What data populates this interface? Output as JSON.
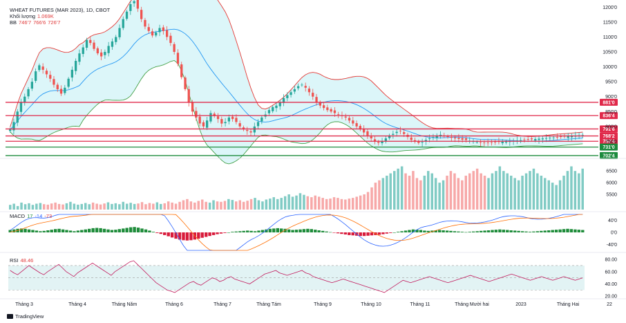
{
  "header": {
    "symbol": "WHEAT FUTURES (MAR 2023), 1D, CBOT",
    "volume_label": "Khối lượng",
    "volume_value": "1.069K",
    "bb_label": "BB",
    "bb_values": [
      "746'7",
      "766'6",
      "726'7"
    ],
    "macd_label": "MACD",
    "macd_values": [
      "17",
      "-14",
      "-73"
    ],
    "rsi_label": "RSI",
    "rsi_value": "48.46"
  },
  "footer": {
    "brand": "TradingView"
  },
  "colors": {
    "up": "#26a69a",
    "down": "#ef5350",
    "bb_upper": "#e53935",
    "bb_lower": "#43a047",
    "bb_basis": "#2196f3",
    "band_fill": "#b2ebf2",
    "level_red": "#e0294a",
    "level_green": "#1b8a3c",
    "macd_line": "#2962ff",
    "signal_line": "#ff6d00",
    "rsi_line": "#c2185b",
    "rsi_band": "#d6eef0"
  },
  "chart_data": [
    {
      "type": "candlestick",
      "title": "WHEAT FUTURES (MAR 2023), 1D, CBOT",
      "x_tick_labels": [
        "Tháng 3",
        "Tháng 4",
        "Tháng Năm",
        "Tháng 6",
        "Tháng 7",
        "Tháng Tám",
        "Tháng 9",
        "Tháng 10",
        "Tháng 11",
        "Tháng Mười hai",
        "2023",
        "Tháng Hai",
        "22"
      ],
      "y_tick_labels": [
        "1200'0",
        "1150'0",
        "1100'0",
        "1050'0",
        "1000'0",
        "950'0",
        "900'0",
        "850'0",
        "800'0",
        "750'0"
      ],
      "ylim": [
        700,
        1210
      ],
      "scale": "linear",
      "overlays": [
        "Bollinger Bands"
      ],
      "horizontal_levels": [
        {
          "label": "881'0",
          "value": 881,
          "color": "red"
        },
        {
          "label": "836'4",
          "value": 836.5,
          "color": "red"
        },
        {
          "label": "791'6",
          "value": 791.75,
          "color": "red"
        },
        {
          "label": "768'2",
          "value": 768.25,
          "color": "red"
        },
        {
          "label": "750'4",
          "value": 750.5,
          "color": "red"
        },
        {
          "label": "731'0",
          "value": 731,
          "color": "green"
        },
        {
          "label": "702'4",
          "value": 702.5,
          "color": "green"
        }
      ],
      "close_series": [
        790,
        815,
        850,
        880,
        900,
        925,
        950,
        985,
        1005,
        990,
        975,
        960,
        940,
        925,
        910,
        930,
        960,
        990,
        1020,
        1045,
        1065,
        1090,
        1080,
        1060,
        1045,
        1035,
        1050,
        1070,
        1085,
        1100,
        1130,
        1160,
        1185,
        1210,
        1220,
        1195,
        1160,
        1135,
        1120,
        1105,
        1115,
        1130,
        1120,
        1100,
        1080,
        1050,
        1010,
        965,
        925,
        880,
        850,
        830,
        810,
        800,
        820,
        845,
        835,
        825,
        810,
        815,
        830,
        825,
        815,
        800,
        790,
        785,
        780,
        800,
        815,
        830,
        840,
        855,
        865,
        870,
        880,
        895,
        905,
        915,
        925,
        935,
        940,
        930,
        915,
        900,
        880,
        870,
        862,
        855,
        850,
        845,
        840,
        835,
        830,
        820,
        810,
        800,
        790,
        780,
        770,
        760,
        750,
        745,
        750,
        760,
        770,
        775,
        782,
        785,
        775,
        765,
        755,
        750,
        745,
        748,
        755,
        760,
        765,
        770,
        772,
        768,
        765,
        762,
        760,
        758,
        756,
        755,
        752,
        750,
        748,
        746,
        745,
        745,
        746,
        747,
        748,
        749,
        750,
        751,
        752,
        753,
        754,
        755,
        756,
        757,
        758,
        759,
        760,
        761,
        762,
        763,
        764,
        765,
        766,
        767,
        768,
        769,
        770,
        771
      ]
    },
    {
      "type": "bar",
      "title": "Khối lượng",
      "y_tick_labels": [
        "6500",
        "6000",
        "5500"
      ],
      "ylim": [
        4850,
        6950
      ],
      "values": [
        5050,
        5100,
        5000,
        5150,
        5080,
        5120,
        5050,
        5100,
        5130,
        5080,
        5060,
        5110,
        5150,
        5090,
        5070,
        5120,
        5180,
        5100,
        5060,
        5090,
        5130,
        5080,
        5150,
        5100,
        5070,
        5110,
        5160,
        5090,
        5120,
        5080,
        5180,
        5100,
        5140,
        5090,
        5110,
        5170,
        5080,
        5130,
        5100,
        5160,
        5090,
        5120,
        5200,
        5150,
        5100,
        5180,
        5250,
        5300,
        5200,
        5150,
        5220,
        5280,
        5180,
        5150,
        5250,
        5200,
        5180,
        5220,
        5300,
        5260,
        5200,
        5250,
        5180,
        5230,
        5300,
        5350,
        5250,
        5200,
        5280,
        5320,
        5380,
        5300,
        5350,
        5420,
        5500,
        5400,
        5450,
        5550,
        5480,
        5420,
        5380,
        5450,
        5400,
        5350,
        5300,
        5320,
        5380,
        5350,
        5300,
        5280,
        5320,
        5350,
        5400,
        5450,
        5500,
        5600,
        5800,
        6000,
        6100,
        6200,
        6300,
        6400,
        6500,
        6600,
        6700,
        6400,
        6300,
        6500,
        6200,
        6100,
        6300,
        6500,
        6400,
        6200,
        6000,
        6100,
        6300,
        6500,
        6400,
        6200,
        6100,
        6300,
        6400,
        6500,
        6600,
        6400,
        6300,
        6200,
        6400,
        6500,
        6700,
        6500,
        6400,
        6300,
        6200,
        6100,
        6300,
        6400,
        6500,
        6600,
        6400,
        6300,
        6200,
        6100,
        6000,
        5900,
        6100,
        6300,
        6500,
        6700,
        6500,
        6400,
        6600
      ]
    },
    {
      "type": "histogram",
      "title": "MACD",
      "y_tick_labels": [
        "40'0",
        "0'0",
        "-40'0"
      ],
      "ylim": [
        -60,
        60
      ],
      "values": [
        8,
        10,
        12,
        13,
        12,
        10,
        8,
        6,
        4,
        5,
        7,
        9,
        11,
        12,
        10,
        8,
        6,
        4,
        6,
        8,
        10,
        12,
        14,
        15,
        14,
        12,
        10,
        8,
        9,
        11,
        13,
        15,
        17,
        18,
        16,
        13,
        10,
        6,
        2,
        -2,
        -5,
        -9,
        -13,
        -17,
        -21,
        -24,
        -26,
        -27,
        -26,
        -24,
        -21,
        -18,
        -15,
        -12,
        -9,
        -6,
        -4,
        -2,
        0,
        2,
        3,
        4,
        5,
        6,
        5,
        4,
        6,
        8,
        10,
        12,
        13,
        14,
        13,
        12,
        10,
        8,
        9,
        10,
        11,
        12,
        11,
        9,
        7,
        5,
        3,
        1,
        -1,
        -3,
        -5,
        -7,
        -9,
        -10,
        -11,
        -12,
        -12,
        -11,
        -10,
        -9,
        -8,
        -6,
        -4,
        -2,
        0,
        2,
        4,
        6,
        8,
        10,
        9,
        8,
        6,
        5,
        6,
        7,
        8,
        7,
        6,
        5,
        4,
        3,
        2,
        1,
        2,
        3,
        4,
        5,
        6,
        7,
        8,
        9,
        10,
        9,
        8,
        7,
        6,
        5,
        4,
        3,
        2,
        3,
        4,
        5,
        6,
        7,
        8,
        9,
        10,
        11,
        12,
        11,
        10,
        9,
        8
      ]
    },
    {
      "type": "line",
      "title": "RSI",
      "y_tick_labels": [
        "80.00",
        "60.00",
        "40.00",
        "20.00"
      ],
      "ylim": [
        18,
        88
      ],
      "values": [
        62,
        58,
        55,
        60,
        65,
        70,
        66,
        62,
        58,
        55,
        60,
        64,
        68,
        72,
        66,
        60,
        56,
        52,
        58,
        62,
        66,
        70,
        74,
        70,
        66,
        62,
        58,
        54,
        60,
        64,
        68,
        72,
        76,
        78,
        72,
        66,
        60,
        54,
        48,
        42,
        38,
        34,
        30,
        28,
        26,
        30,
        34,
        38,
        42,
        44,
        40,
        38,
        42,
        46,
        50,
        48,
        44,
        46,
        50,
        52,
        48,
        46,
        44,
        42,
        40,
        44,
        48,
        52,
        56,
        58,
        60,
        62,
        58,
        56,
        54,
        56,
        58,
        60,
        62,
        58,
        56,
        52,
        50,
        48,
        46,
        44,
        42,
        44,
        46,
        48,
        46,
        44,
        42,
        40,
        38,
        36,
        34,
        32,
        30,
        28,
        26,
        30,
        34,
        38,
        42,
        46,
        44,
        42,
        44,
        46,
        48,
        50,
        52,
        50,
        48,
        46,
        44,
        42,
        44,
        46,
        48,
        50,
        52,
        54,
        52,
        50,
        48,
        46,
        44,
        46,
        48,
        50,
        52,
        54,
        56,
        54,
        52,
        50,
        48,
        46,
        48,
        50,
        52,
        50,
        48,
        46,
        48,
        50,
        52,
        50,
        48,
        46,
        48,
        50
      ]
    }
  ]
}
